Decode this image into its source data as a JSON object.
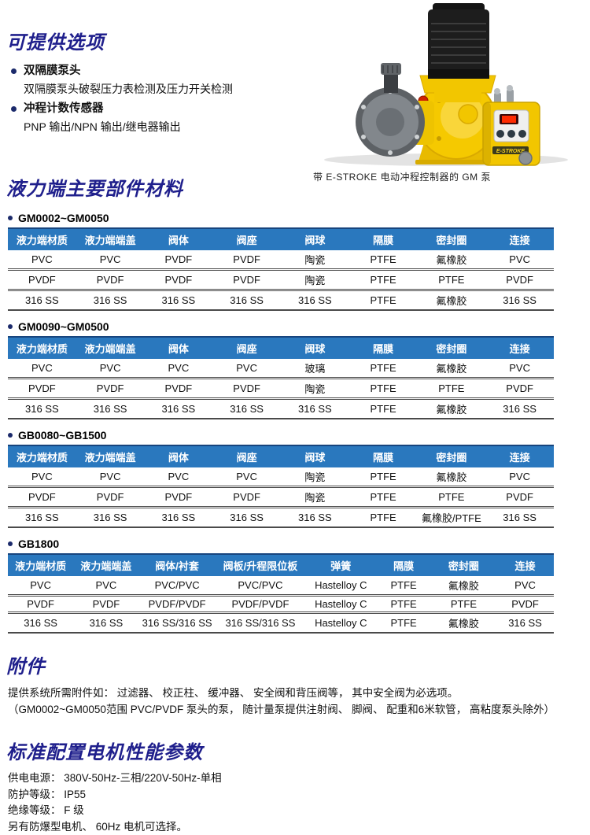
{
  "colors": {
    "title_navy": "#1f1f8c",
    "table_header_blue": "#2a78be",
    "pump_yellow": "#f2c600",
    "display_red": "#ff2a00"
  },
  "options_section": {
    "title": "可提供选项",
    "items": [
      {
        "label": "双隔膜泵头",
        "detail": "双隔膜泵头破裂压力表检测及压力开关检测"
      },
      {
        "label": "冲程计数传感器",
        "detail": "PNP 输出/NPN 输出/继电器输出"
      }
    ]
  },
  "pump_figure": {
    "caption": "带 E-STROKE 电动冲程控制器的 GM 泵",
    "box_label": "E-STROKE"
  },
  "materials_section": {
    "title": "液力端主要部件材料",
    "tables": [
      {
        "caption": "GM0002~GM0050",
        "headers": [
          "液力端材质",
          "液力端端盖",
          "阀体",
          "阀座",
          "阀球",
          "隔膜",
          "密封圈",
          "连接"
        ],
        "col_widths": [
          "12.5%",
          "12.5%",
          "12.5%",
          "12.5%",
          "12.5%",
          "12.5%",
          "12.5%",
          "12.5%"
        ],
        "rows": [
          [
            "PVC",
            "PVC",
            "PVDF",
            "PVDF",
            "陶瓷",
            "PTFE",
            "氟橡胶",
            "PVC"
          ],
          [
            "PVDF",
            "PVDF",
            "PVDF",
            "PVDF",
            "陶瓷",
            "PTFE",
            "PTFE",
            "PVDF"
          ],
          [
            "316 SS",
            "316 SS",
            "316 SS",
            "316 SS",
            "316 SS",
            "PTFE",
            "氟橡胶",
            "316 SS"
          ]
        ]
      },
      {
        "caption": "GM0090~GM0500",
        "headers": [
          "液力端材质",
          "液力端端盖",
          "阀体",
          "阀座",
          "阀球",
          "隔膜",
          "密封圈",
          "连接"
        ],
        "col_widths": [
          "12.5%",
          "12.5%",
          "12.5%",
          "12.5%",
          "12.5%",
          "12.5%",
          "12.5%",
          "12.5%"
        ],
        "rows": [
          [
            "PVC",
            "PVC",
            "PVC",
            "PVC",
            "玻璃",
            "PTFE",
            "氟橡胶",
            "PVC"
          ],
          [
            "PVDF",
            "PVDF",
            "PVDF",
            "PVDF",
            "陶瓷",
            "PTFE",
            "PTFE",
            "PVDF"
          ],
          [
            "316 SS",
            "316 SS",
            "316 SS",
            "316 SS",
            "316 SS",
            "PTFE",
            "氟橡胶",
            "316 SS"
          ]
        ]
      },
      {
        "caption": "GB0080~GB1500",
        "headers": [
          "液力端材质",
          "液力端端盖",
          "阀体",
          "阀座",
          "阀球",
          "隔膜",
          "密封圈",
          "连接"
        ],
        "col_widths": [
          "12.5%",
          "12.5%",
          "12.5%",
          "12.5%",
          "12.5%",
          "12.5%",
          "12.5%",
          "12.5%"
        ],
        "rows": [
          [
            "PVC",
            "PVC",
            "PVC",
            "PVC",
            "陶瓷",
            "PTFE",
            "氟橡胶",
            "PVC"
          ],
          [
            "PVDF",
            "PVDF",
            "PVDF",
            "PVDF",
            "陶瓷",
            "PTFE",
            "PTFE",
            "PVDF"
          ],
          [
            "316 SS",
            "316 SS",
            "316 SS",
            "316 SS",
            "316 SS",
            "PTFE",
            "氟橡胶/PTFE",
            "316 SS"
          ]
        ]
      },
      {
        "caption": "GB1800",
        "headers": [
          "液力端材质",
          "液力端端盖",
          "阀体/衬套",
          "阀板/升程限位板",
          "弹簧",
          "隔膜",
          "密封圈",
          "连接"
        ],
        "col_widths": [
          "12%",
          "12%",
          "14%",
          "16.5%",
          "13%",
          "10%",
          "12%",
          "10.5%"
        ],
        "rows": [
          [
            "PVC",
            "PVC",
            "PVC/PVC",
            "PVC/PVC",
            "Hastelloy C",
            "PTFE",
            "氟橡胶",
            "PVC"
          ],
          [
            "PVDF",
            "PVDF",
            "PVDF/PVDF",
            "PVDF/PVDF",
            "Hastelloy C",
            "PTFE",
            "PTFE",
            "PVDF"
          ],
          [
            "316 SS",
            "316 SS",
            "316 SS/316 SS",
            "316 SS/316 SS",
            "Hastelloy C",
            "PTFE",
            "氟橡胶",
            "316 SS"
          ]
        ]
      }
    ]
  },
  "accessories_section": {
    "title": "附件",
    "lines": [
      "提供系统所需附件如： 过滤器、 校正柱、 缓冲器、 安全阀和背压阀等， 其中安全阀为必选项。",
      "（GM0002~GM0050范围 PVC/PVDF 泵头的泵， 随计量泵提供注射阀、 脚阀、 配重和6米软管， 高粘度泵头除外）"
    ]
  },
  "motor_section": {
    "title": "标准配置电机性能参数",
    "lines": [
      "供电电源：  380V-50Hz-三相/220V-50Hz-单相",
      "防护等级：  IP55",
      "绝缘等级：  F 级",
      "另有防爆型电机、 60Hz 电机可选择。"
    ]
  }
}
